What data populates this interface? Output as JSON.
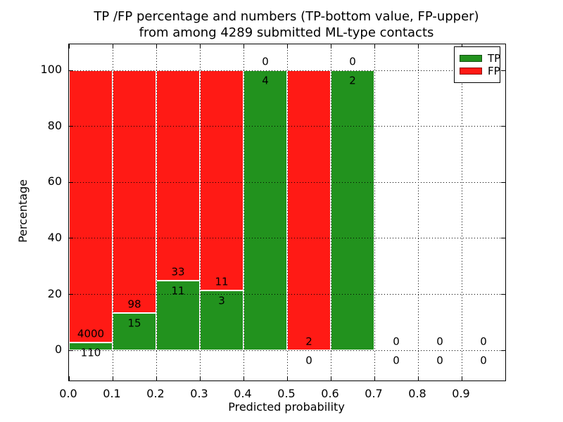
{
  "figure": {
    "title_line1": "TP /FP percentage and numbers (TP-bottom value, FP-upper)",
    "title_line2": "from among 4289 submitted ML-type contacts"
  },
  "chart_data": {
    "type": "bar",
    "stacked": true,
    "normalized_to": "100% per bin (bar heights are percent of bin total)",
    "title": "TP /FP percentage and numbers (TP-bottom value, FP-upper) from among 4289 submitted ML-type contacts",
    "xlabel": "Predicted probability",
    "ylabel": "Percentage",
    "bin_starts": [
      0.0,
      0.1,
      0.2,
      0.3,
      0.4,
      0.5,
      0.6,
      0.7,
      0.8,
      0.9
    ],
    "bin_width": 0.1,
    "series": [
      {
        "name": "TP",
        "color": "#22921e",
        "counts": [
          110,
          15,
          11,
          3,
          4,
          0,
          2,
          0,
          0,
          0
        ]
      },
      {
        "name": "FP",
        "color": "#ff1a15",
        "counts": [
          4000,
          98,
          33,
          11,
          0,
          2,
          0,
          0,
          0,
          0
        ]
      }
    ],
    "tp_percent_heights": [
      2.7,
      13.3,
      25.0,
      21.4,
      100.0,
      0.0,
      100.0,
      0,
      0,
      0
    ],
    "annotation_rule": "FP count printed just above TP/FP boundary, TP count printed just below it",
    "x_tick_labels": [
      "0.0",
      "0.1",
      "0.2",
      "0.3",
      "0.4",
      "0.5",
      "0.6",
      "0.7",
      "0.8",
      "0.9"
    ],
    "y_tick_labels": [
      "0",
      "20",
      "40",
      "60",
      "80",
      "100"
    ],
    "y_ticks": [
      0,
      20,
      40,
      60,
      80,
      100
    ],
    "xlim": [
      0.0,
      1.0
    ],
    "ylim": [
      -10.8,
      109.4
    ],
    "grid": "dotted black, drawn above bars",
    "legend": {
      "position": "upper right",
      "entries": [
        "TP",
        "FP"
      ]
    }
  },
  "colors": {
    "tp_green": "#22921e",
    "fp_red": "#ff1a15",
    "frame": "#000000",
    "grid": "#000000",
    "background": "#ffffff"
  }
}
